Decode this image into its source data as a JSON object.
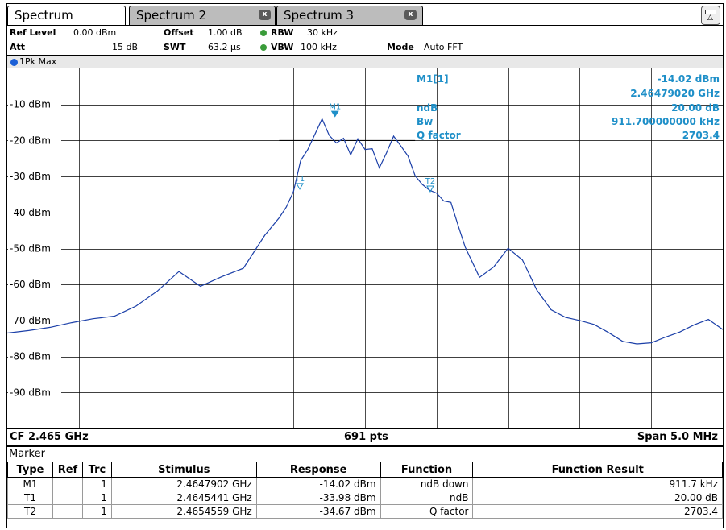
{
  "tabs": [
    {
      "label": "Spectrum",
      "active": true
    },
    {
      "label": "Spectrum 2",
      "active": false,
      "close": "x"
    },
    {
      "label": "Spectrum 3",
      "active": false,
      "close": "x"
    }
  ],
  "settings": {
    "ref_level_label": "Ref Level",
    "ref_level_value": "0.00 dBm",
    "offset_label": "Offset",
    "offset_value": "1.00 dB",
    "rbw_label": "RBW",
    "rbw_value": "30 kHz",
    "att_label": "Att",
    "att_value": "15 dB",
    "swt_label": "SWT",
    "swt_value": "63.2 µs",
    "vbw_label": "VBW",
    "vbw_value": "100 kHz",
    "mode_label": "Mode",
    "mode_value": "Auto FFT"
  },
  "trace_label": "1Pk Max",
  "marker_info": {
    "m1_label": "M1[1]",
    "m1_level": "-14.02 dBm",
    "m1_freq": "2.46479020 GHz",
    "ndb_label": "ndB",
    "ndb_value": "20.00 dB",
    "bw_label": "Bw",
    "bw_value": "911.700000000 kHz",
    "q_label": "Q factor",
    "q_value": "2703.4"
  },
  "footer": {
    "cf": "CF 2.465 GHz",
    "pts": "691 pts",
    "span": "Span 5.0 MHz"
  },
  "marker_table": {
    "title": "Marker",
    "headers": [
      "Type",
      "Ref",
      "Trc",
      "Stimulus",
      "Response",
      "Function",
      "Function Result"
    ],
    "rows": [
      [
        "M1",
        "",
        "1",
        "2.4647902 GHz",
        "-14.02 dBm",
        "ndB down",
        "911.7 kHz"
      ],
      [
        "T1",
        "",
        "1",
        "2.4645441 GHz",
        "-33.98 dBm",
        "ndB",
        "20.00 dB"
      ],
      [
        "T2",
        "",
        "1",
        "2.4654559 GHz",
        "-34.67 dBm",
        "Q factor",
        "2703.4"
      ]
    ]
  },
  "colors": {
    "trace": "#1b3fa8",
    "marker": "#1e8fc8",
    "grid": "#000000",
    "status_dot": "#3a9c3a"
  },
  "chart_data": {
    "type": "line",
    "x_center_ghz": 2.465,
    "x_span_mhz": 5.0,
    "ylim": [
      -100,
      0
    ],
    "y_ticks": [
      "-10 dBm",
      "-20 dBm",
      "-30 dBm",
      "-40 dBm",
      "-50 dBm",
      "-60 dBm",
      "-70 dBm",
      "-80 dBm",
      "-90 dBm"
    ],
    "y_tick_values": [
      -10,
      -20,
      -30,
      -40,
      -50,
      -60,
      -70,
      -80,
      -90
    ],
    "reference_line_dbm": -20,
    "grid": true,
    "markers": [
      {
        "name": "M1",
        "x_ghz": 2.4647902,
        "y_dbm": -14.02
      },
      {
        "name": "T1",
        "x_ghz": 2.4645441,
        "y_dbm": -33.98
      },
      {
        "name": "T2",
        "x_ghz": 2.4654559,
        "y_dbm": -34.67
      }
    ],
    "trace_x_ghz": [
      2.4625,
      2.46265,
      2.4628,
      2.46295,
      2.4631,
      2.46325,
      2.4634,
      2.46355,
      2.4637,
      2.46385,
      2.464,
      2.46415,
      2.4643,
      2.4644,
      2.46445,
      2.4645,
      2.46455,
      2.4646,
      2.46465,
      2.4647,
      2.46475,
      2.4648,
      2.46485,
      2.4649,
      2.46495,
      2.465,
      2.46505,
      2.4651,
      2.46515,
      2.4652,
      2.46525,
      2.4653,
      2.46535,
      2.4654,
      2.46545,
      2.4655,
      2.46555,
      2.4656,
      2.46565,
      2.4657,
      2.4658,
      2.4659,
      2.466,
      2.4661,
      2.4662,
      2.4663,
      2.4664,
      2.4665,
      2.4666,
      2.4667,
      2.4668,
      2.4669,
      2.467,
      2.4671,
      2.4672,
      2.4673,
      2.4674,
      2.4675
    ],
    "trace_y_dbm": [
      -73.5,
      -72.8,
      -71.9,
      -70.6,
      -69.5,
      -68.8,
      -66,
      -61.8,
      -56.4,
      -60.5,
      -57.8,
      -55.5,
      -46.3,
      -41.5,
      -38.5,
      -34.2,
      -25.6,
      -22.5,
      -18.3,
      -14.0,
      -18.6,
      -20.7,
      -19.4,
      -24,
      -19.5,
      -22.5,
      -22.3,
      -27.6,
      -23.5,
      -18.8,
      -21.5,
      -24.3,
      -29.8,
      -32.2,
      -33.8,
      -34.6,
      -36.8,
      -37.2,
      -43.5,
      -49.6,
      -58,
      -55.1,
      -49.9,
      -53.2,
      -61.5,
      -67,
      -69.1,
      -70,
      -71.1,
      -73.3,
      -75.8,
      -76.5,
      -76.2,
      -74.6,
      -73.2,
      -71.2,
      -69.7,
      -72.5
    ]
  }
}
